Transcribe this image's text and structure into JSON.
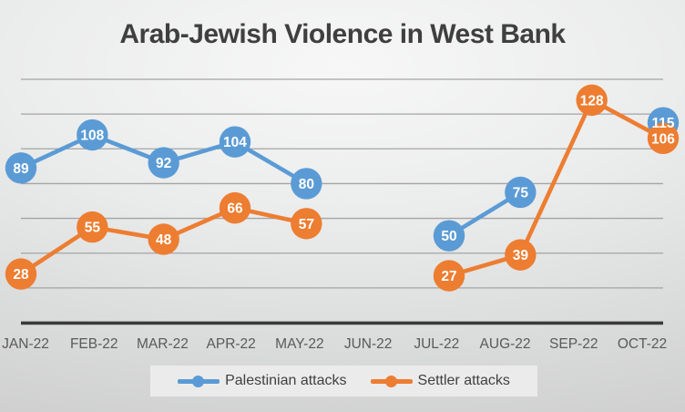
{
  "title": "Arab-Jewish Violence in West Bank",
  "colors": {
    "title_text": "#3F3F3F",
    "axis_text": "#595959",
    "gridline": "#A4A4A4",
    "axis_line": "#3A3A3A",
    "data_label_text": "#FFFFFF",
    "legend_background": "#EBEBEB",
    "slide_background": "#E3E4E4"
  },
  "chart_data": {
    "type": "line",
    "title": "Arab-Jewish Violence in West Bank",
    "categories": [
      "JAN-22",
      "FEB-22",
      "MAR-22",
      "APR-22",
      "MAY-22",
      "JUN-22",
      "JUL-22",
      "AUG-22",
      "SEP-22",
      "OCT-22"
    ],
    "series": [
      {
        "name": "Palestinian attacks",
        "color": "#5B9BD5",
        "values": [
          89,
          108,
          92,
          104,
          80,
          null,
          50,
          75,
          null,
          115
        ]
      },
      {
        "name": "Settler attacks",
        "color": "#ED7D31",
        "values": [
          28,
          55,
          48,
          66,
          57,
          null,
          27,
          39,
          128,
          106
        ]
      }
    ],
    "xlabel": "",
    "ylabel": "",
    "ylim": [
      0,
      146
    ],
    "gridline_interval": 20,
    "grid": true,
    "markers": true,
    "data_labels": "center",
    "legend_position": "bottom"
  }
}
